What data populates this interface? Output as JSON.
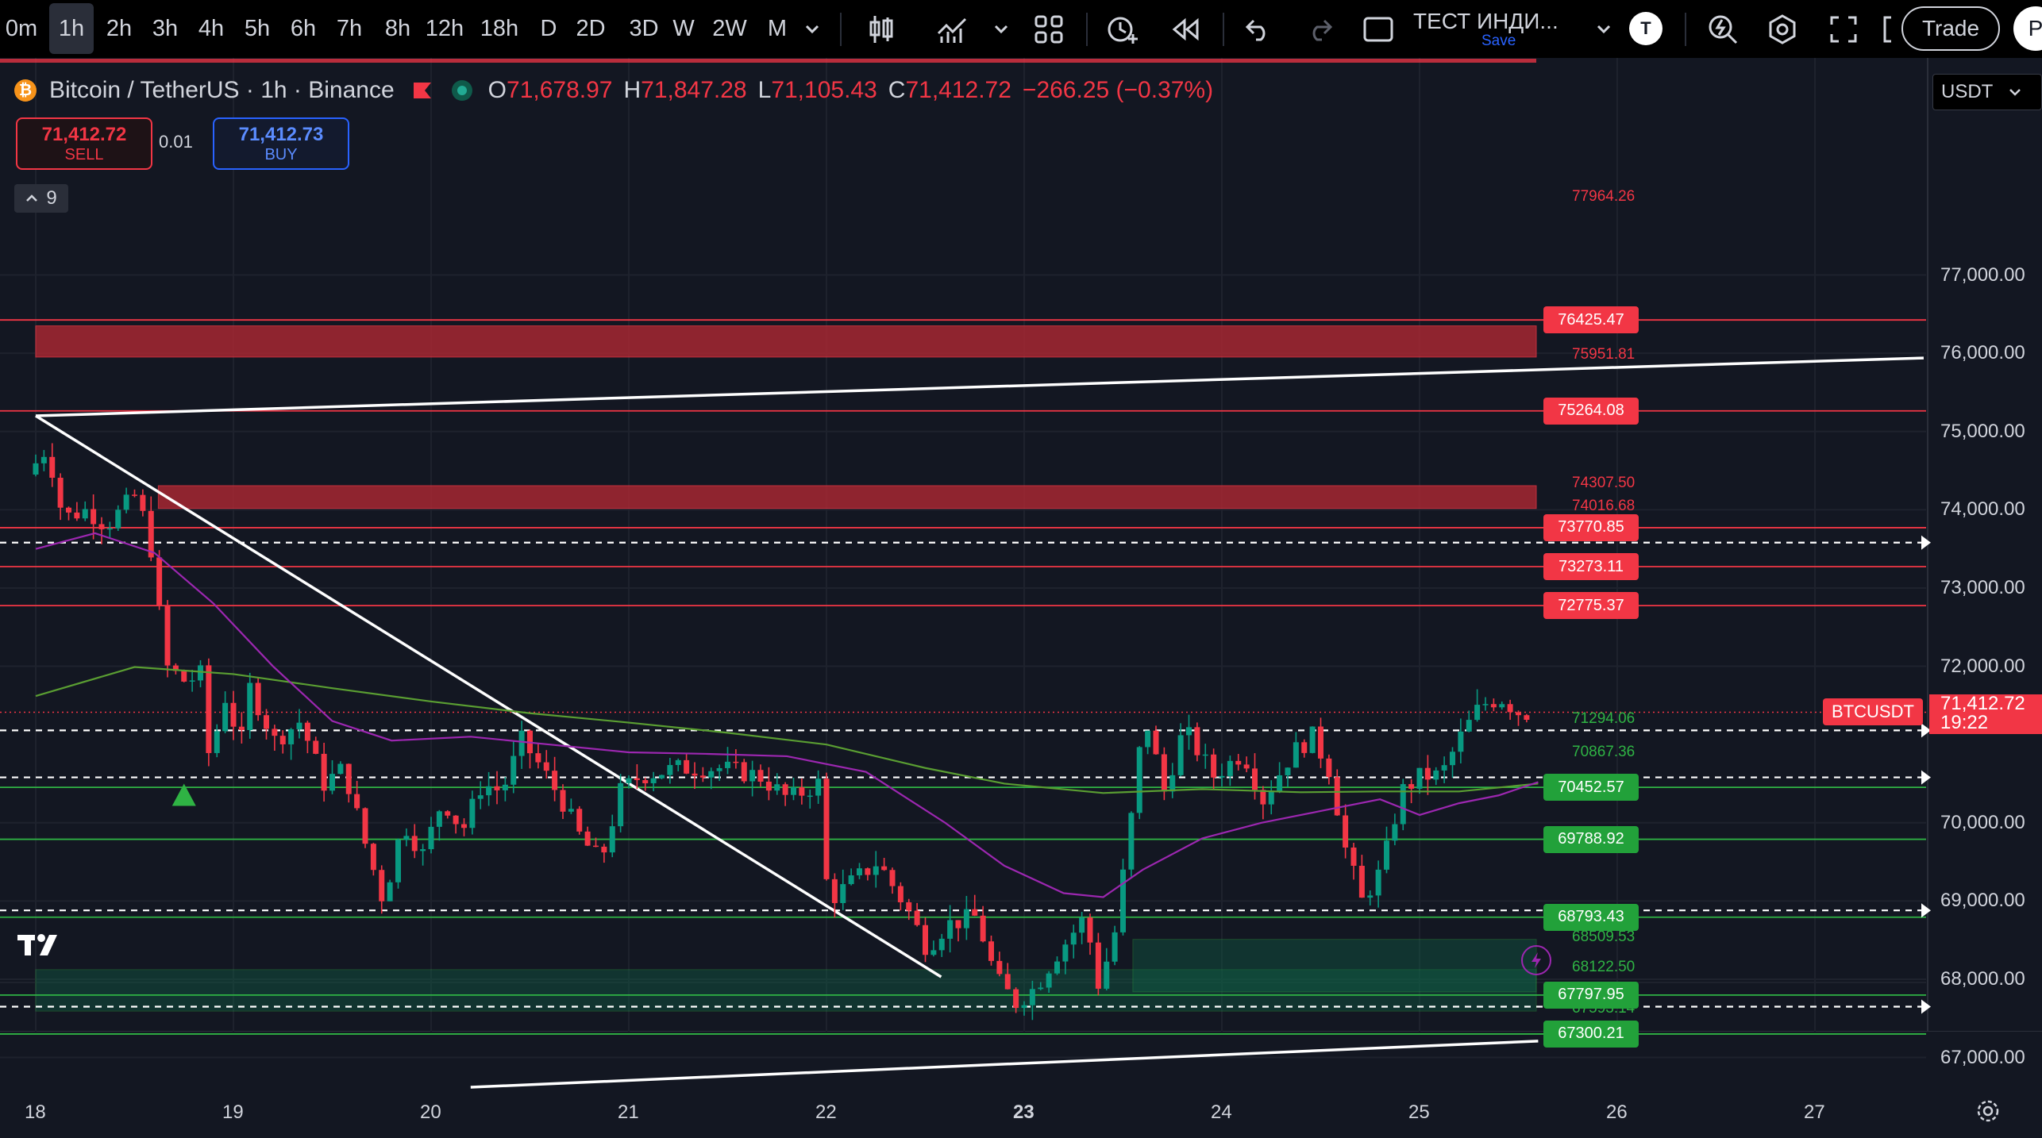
{
  "toolbar": {
    "intervals": [
      "0m",
      "1h",
      "2h",
      "3h",
      "4h",
      "5h",
      "6h",
      "7h",
      "8h",
      "12h",
      "18h",
      "D",
      "2D",
      "3D",
      "W",
      "2W",
      "M"
    ],
    "active_interval": "1h",
    "indicators_label": "ТЕСТ ИНДИ...",
    "save_label": "Save",
    "avatar_letter": "T",
    "trade_label": "Trade",
    "profile_letter": "P"
  },
  "symbol": {
    "name": "Bitcoin / TetherUS · 1h · Binance",
    "open_label": "O",
    "open": "71,678.97",
    "high_label": "H",
    "high": "71,847.28",
    "low_label": "L",
    "low": "71,105.43",
    "close_label": "C",
    "close": "71,412.72",
    "change": "−266.25 (−0.37%)"
  },
  "trading": {
    "sell_price": "71,412.72",
    "sell_label": "SELL",
    "quantity": "0.01",
    "buy_price": "71,412.73",
    "buy_label": "BUY",
    "indicator_count": "9"
  },
  "currency_selector": "USDT",
  "colors": {
    "background": "#131722",
    "up": "#089981",
    "down": "#f23645",
    "resistance": "#f23645",
    "support": "#2fb344",
    "ma_slow": "#5a9e32",
    "ma_fast": "#9c27b0"
  },
  "chart_data": {
    "type": "candlestick",
    "symbol": "BTCUSDT",
    "interval": "1h",
    "x_axis_labels": [
      "18",
      "19",
      "20",
      "21",
      "22",
      "23",
      "24",
      "25",
      "26",
      "27"
    ],
    "y_axis_labels": [
      "77,000.00",
      "76,000.00",
      "75,000.00",
      "74,000.00",
      "73,000.00",
      "72,000.00",
      "70,000.00",
      "69,000.00",
      "68,000.00",
      "67,000.00"
    ],
    "ylim": [
      66600,
      78000
    ],
    "last_price": {
      "label": "BTCUSDT",
      "price": "71,412.72",
      "countdown": "19:22",
      "value": 71412.72
    },
    "resistance_levels": [
      {
        "label": "76425.47",
        "value": 76425.47
      },
      {
        "label": "75264.08",
        "value": 75264.08
      },
      {
        "label": "73770.85",
        "value": 73770.85
      },
      {
        "label": "73273.11",
        "value": 73273.11
      },
      {
        "label": "72775.37",
        "value": 72775.37
      }
    ],
    "support_levels": [
      {
        "label": "70452.57",
        "value": 70452.57
      },
      {
        "label": "69788.92",
        "value": 69788.92
      },
      {
        "label": "68793.43",
        "value": 68793.43
      },
      {
        "label": "67797.95",
        "value": 67797.95
      },
      {
        "label": "67300.21",
        "value": 67300.21
      }
    ],
    "annotations": [
      {
        "text": "77964.26",
        "value": 77964.26,
        "kind": "down"
      },
      {
        "text": "75951.81",
        "value": 75951.81,
        "kind": "down"
      },
      {
        "text": "74307.50",
        "value": 74307.5,
        "kind": "down"
      },
      {
        "text": "74016.68",
        "value": 74016.68,
        "kind": "down"
      },
      {
        "text": "71294.06",
        "value": 71294.06,
        "kind": "up"
      },
      {
        "text": "70867.36",
        "value": 70867.36,
        "kind": "up"
      },
      {
        "text": "68509.53",
        "value": 68509.53,
        "kind": "up"
      },
      {
        "text": "68122.50",
        "value": 68122.5,
        "kind": "up"
      },
      {
        "text": "67593.14",
        "value": 67593.14,
        "kind": "up"
      }
    ],
    "zones": [
      {
        "kind": "supply",
        "from": 75951.81,
        "to": 76350,
        "start_day": 18.0
      },
      {
        "kind": "supply",
        "from": 74016.68,
        "to": 74307.5,
        "start_day": 18.62
      },
      {
        "kind": "demand",
        "from": 67593.14,
        "to": 68122.5,
        "start_day": 18.0
      },
      {
        "kind": "demand",
        "from": 67840,
        "to": 68509.53,
        "start_day": 23.55
      }
    ],
    "dashed_levels": [
      73580,
      71180,
      70580,
      68880,
      67650
    ],
    "trendlines": [
      {
        "from": [
          18.0,
          75200
        ],
        "to": [
          27.55,
          75940
        ]
      },
      {
        "from": [
          18.0,
          75200
        ],
        "to": [
          22.58,
          68030
        ]
      },
      {
        "from": [
          20.2,
          66620
        ],
        "to": [
          25.6,
          67210
        ]
      }
    ],
    "moving_averages": [
      {
        "name": "slow",
        "points": [
          [
            18.0,
            71620
          ],
          [
            18.5,
            71990
          ],
          [
            19.0,
            71900
          ],
          [
            19.5,
            71720
          ],
          [
            20.0,
            71550
          ],
          [
            20.5,
            71400
          ],
          [
            21.0,
            71280
          ],
          [
            21.5,
            71150
          ],
          [
            22.0,
            71000
          ],
          [
            22.5,
            70700
          ],
          [
            22.9,
            70500
          ],
          [
            23.4,
            70380
          ],
          [
            23.9,
            70430
          ],
          [
            24.4,
            70390
          ],
          [
            24.8,
            70400
          ],
          [
            25.2,
            70400
          ],
          [
            25.6,
            70500
          ]
        ]
      },
      {
        "name": "fast",
        "points": [
          [
            18.0,
            73500
          ],
          [
            18.3,
            73700
          ],
          [
            18.6,
            73450
          ],
          [
            18.9,
            72800
          ],
          [
            19.2,
            72000
          ],
          [
            19.5,
            71300
          ],
          [
            19.8,
            71050
          ],
          [
            20.2,
            71100
          ],
          [
            20.6,
            71000
          ],
          [
            21.0,
            70900
          ],
          [
            21.4,
            70880
          ],
          [
            21.8,
            70850
          ],
          [
            22.2,
            70650
          ],
          [
            22.6,
            70000
          ],
          [
            22.9,
            69450
          ],
          [
            23.2,
            69100
          ],
          [
            23.4,
            69050
          ],
          [
            23.6,
            69400
          ],
          [
            23.9,
            69800
          ],
          [
            24.2,
            70000
          ],
          [
            24.5,
            70150
          ],
          [
            24.8,
            70300
          ],
          [
            25.0,
            70100
          ],
          [
            25.2,
            70250
          ],
          [
            25.4,
            70350
          ],
          [
            25.6,
            70520
          ]
        ]
      }
    ],
    "price_path": [
      [
        18.0,
        74450
      ],
      [
        18.1,
        74800
      ],
      [
        18.18,
        73900
      ],
      [
        18.3,
        74000
      ],
      [
        18.4,
        73800
      ],
      [
        18.55,
        74200
      ],
      [
        18.62,
        73600
      ],
      [
        18.7,
        72000
      ],
      [
        18.8,
        71800
      ],
      [
        18.88,
        71900
      ],
      [
        18.92,
        70800
      ],
      [
        19.0,
        71600
      ],
      [
        19.08,
        71000
      ],
      [
        19.12,
        71750
      ],
      [
        19.25,
        71050
      ],
      [
        19.38,
        71300
      ],
      [
        19.5,
        70500
      ],
      [
        19.6,
        70700
      ],
      [
        19.7,
        69800
      ],
      [
        19.8,
        69000
      ],
      [
        19.9,
        70000
      ],
      [
        20.0,
        69600
      ],
      [
        20.1,
        70300
      ],
      [
        20.2,
        69900
      ],
      [
        20.3,
        70500
      ],
      [
        20.4,
        70400
      ],
      [
        20.5,
        71050
      ],
      [
        20.6,
        70700
      ],
      [
        20.7,
        70300
      ],
      [
        20.8,
        69800
      ],
      [
        20.9,
        69500
      ],
      [
        21.0,
        70400
      ],
      [
        21.1,
        70600
      ],
      [
        21.3,
        70700
      ],
      [
        21.5,
        70700
      ],
      [
        21.7,
        70600
      ],
      [
        21.85,
        70300
      ],
      [
        22.0,
        70500
      ],
      [
        22.05,
        69000
      ],
      [
        22.2,
        69300
      ],
      [
        22.3,
        69500
      ],
      [
        22.45,
        68900
      ],
      [
        22.55,
        68400
      ],
      [
        22.65,
        68700
      ],
      [
        22.8,
        68800
      ],
      [
        22.9,
        68000
      ],
      [
        23.0,
        67700
      ],
      [
        23.1,
        67900
      ],
      [
        23.2,
        68300
      ],
      [
        23.35,
        68800
      ],
      [
        23.42,
        67900
      ],
      [
        23.5,
        68600
      ],
      [
        23.58,
        70000
      ],
      [
        23.65,
        71400
      ],
      [
        23.75,
        70400
      ],
      [
        23.85,
        71200
      ],
      [
        24.0,
        70600
      ],
      [
        24.15,
        70900
      ],
      [
        24.25,
        70300
      ],
      [
        24.4,
        70900
      ],
      [
        24.5,
        71100
      ],
      [
        24.6,
        70600
      ],
      [
        24.65,
        69800
      ],
      [
        24.75,
        69000
      ],
      [
        24.85,
        69400
      ],
      [
        24.95,
        70400
      ],
      [
        25.05,
        70600
      ],
      [
        25.15,
        70600
      ],
      [
        25.25,
        71100
      ],
      [
        25.35,
        71500
      ],
      [
        25.45,
        71600
      ],
      [
        25.55,
        71400
      ]
    ],
    "trend_markers": [
      {
        "kind": "up-triangle",
        "day": 18.75,
        "value": 70500
      }
    ]
  }
}
